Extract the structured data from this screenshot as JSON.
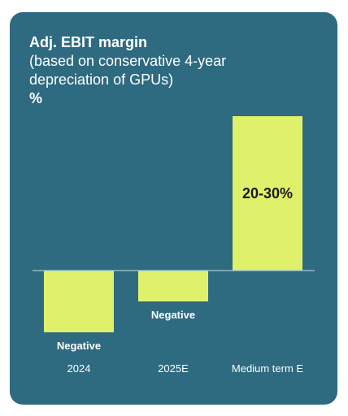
{
  "header": {
    "title": "Adj. EBIT margin",
    "subtitle_line1": "(based on conservative 4-year",
    "subtitle_line2": "depreciation of GPUs)",
    "unit": "%"
  },
  "colors": {
    "background": "#2e6a80",
    "bar": "#dff06a",
    "text": "#ffffff",
    "bar_label": "#1a1a1a",
    "baseline": "#a8cbd6"
  },
  "chart_data": {
    "type": "bar",
    "title": "Adj. EBIT margin",
    "subtitle": "(based on conservative 4-year depreciation of GPUs)",
    "ylabel": "%",
    "xlabel": "",
    "categories": [
      "2024",
      "2025E",
      "Medium term E"
    ],
    "values": [
      -10,
      -5,
      25
    ],
    "value_labels": [
      "Negative",
      "Negative",
      "20-30%"
    ],
    "ylim": [
      -10,
      25
    ],
    "grid": false,
    "legend": "none"
  }
}
